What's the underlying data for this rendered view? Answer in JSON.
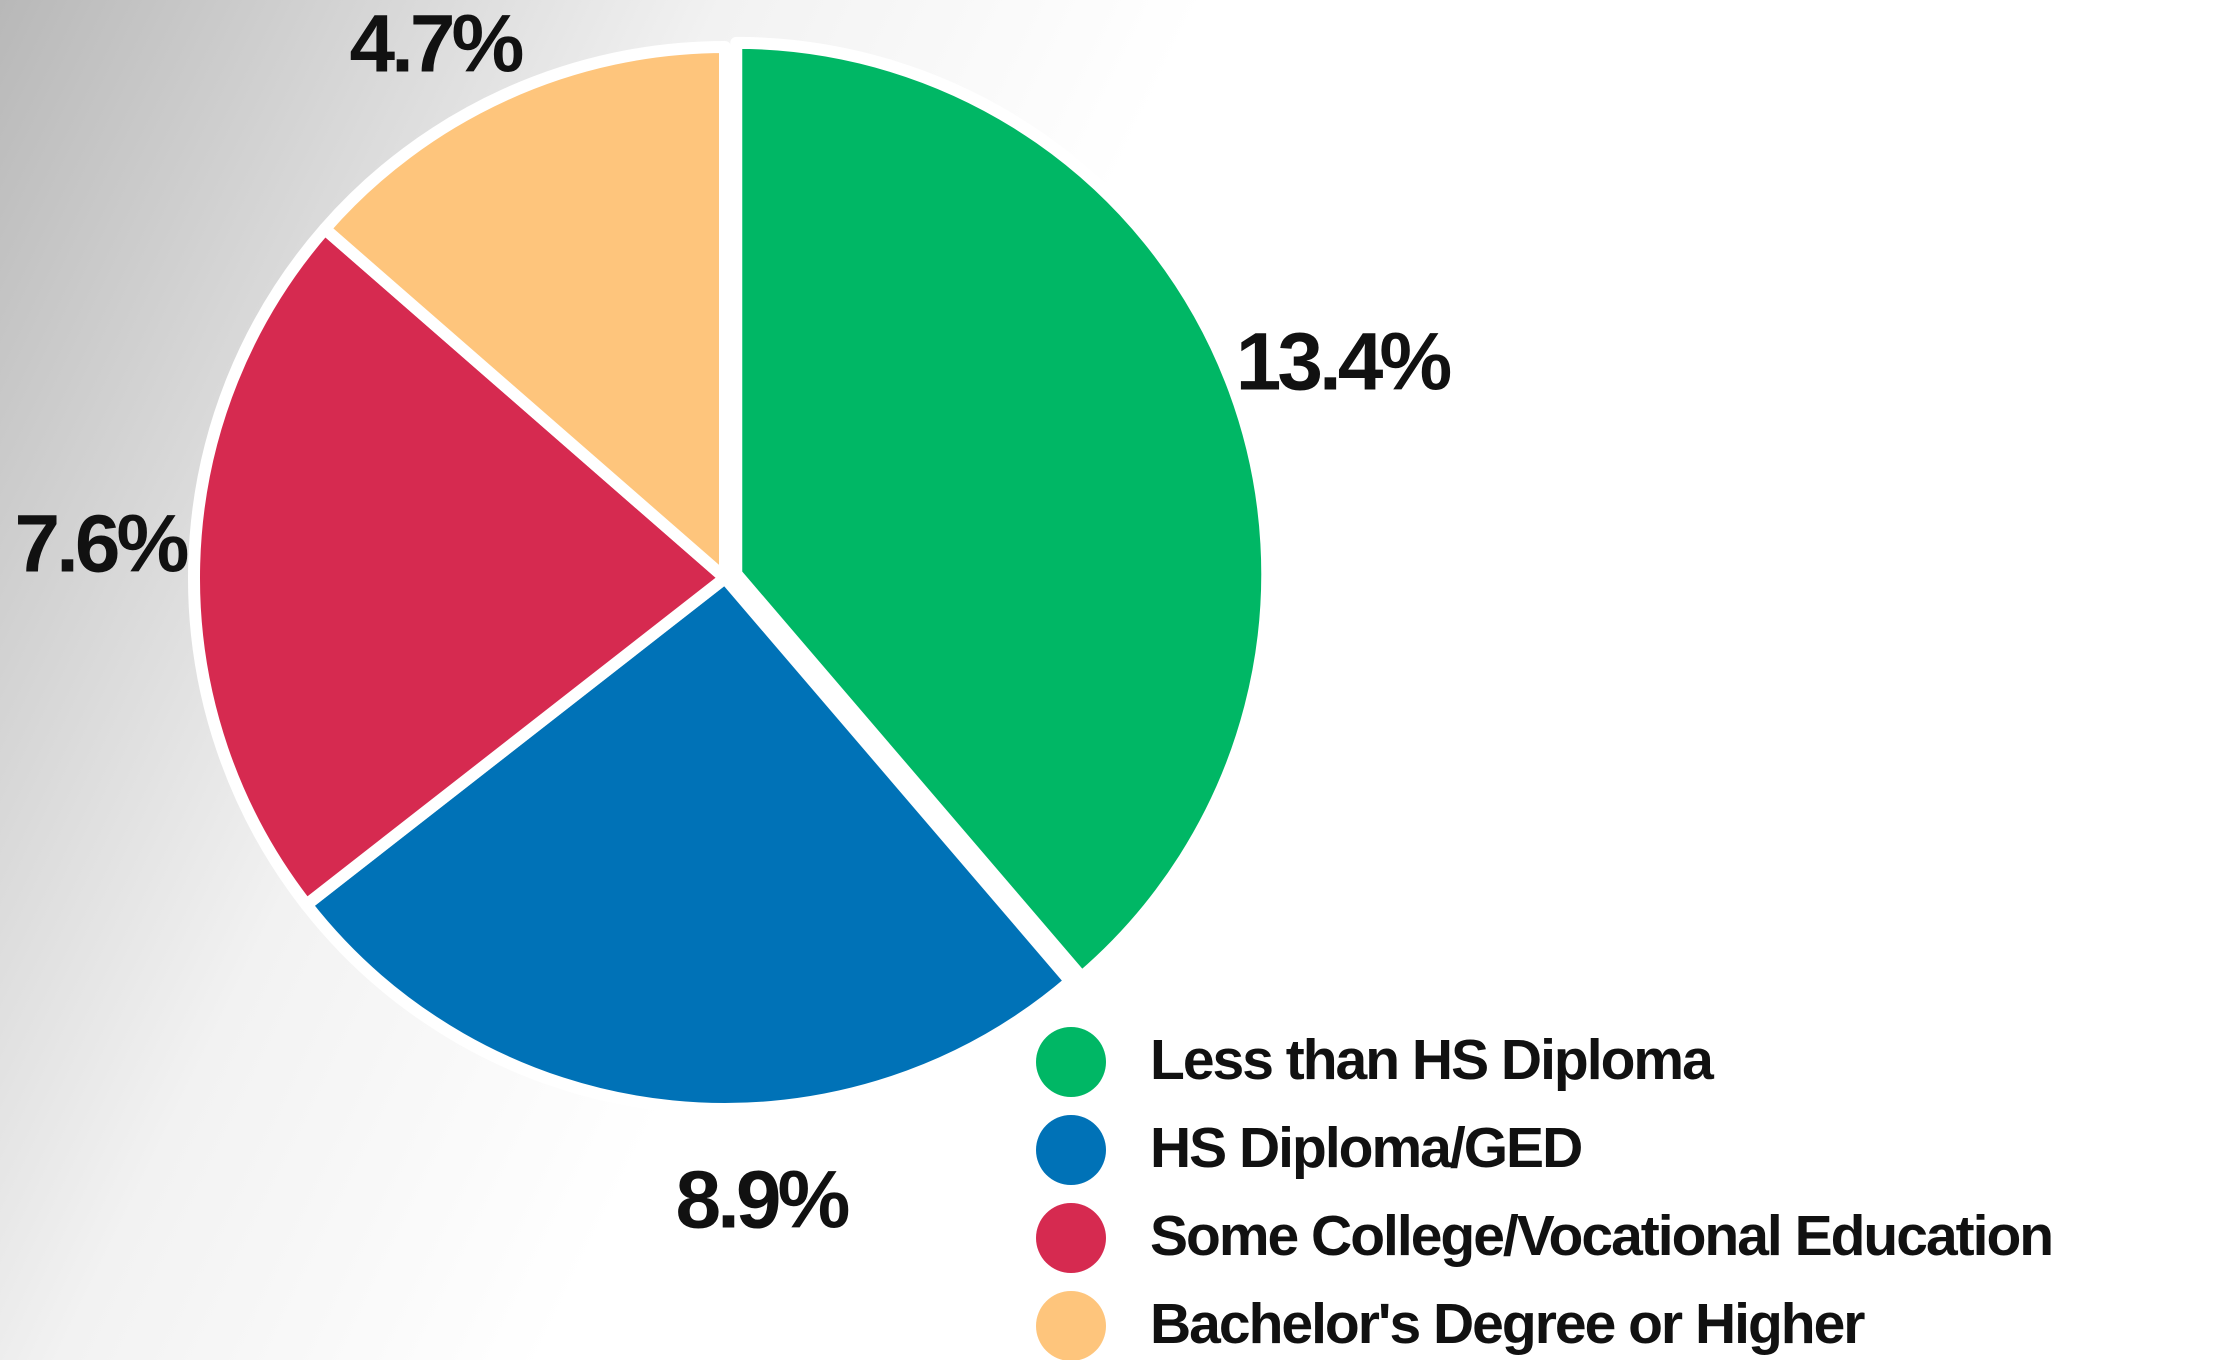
{
  "chart_data": {
    "type": "pie",
    "categories": [
      "Less than HS Diploma",
      "HS Diploma/GED",
      "Some College/Vocational Education",
      "Bachelor's Degree or Higher"
    ],
    "values": [
      13.4,
      8.9,
      7.6,
      4.7
    ],
    "value_labels": [
      "13.4%",
      "8.9%",
      "7.6%",
      "4.7%"
    ],
    "colors": [
      "#00b765",
      "#0072b7",
      "#d62a50",
      "#fec57c"
    ]
  }
}
